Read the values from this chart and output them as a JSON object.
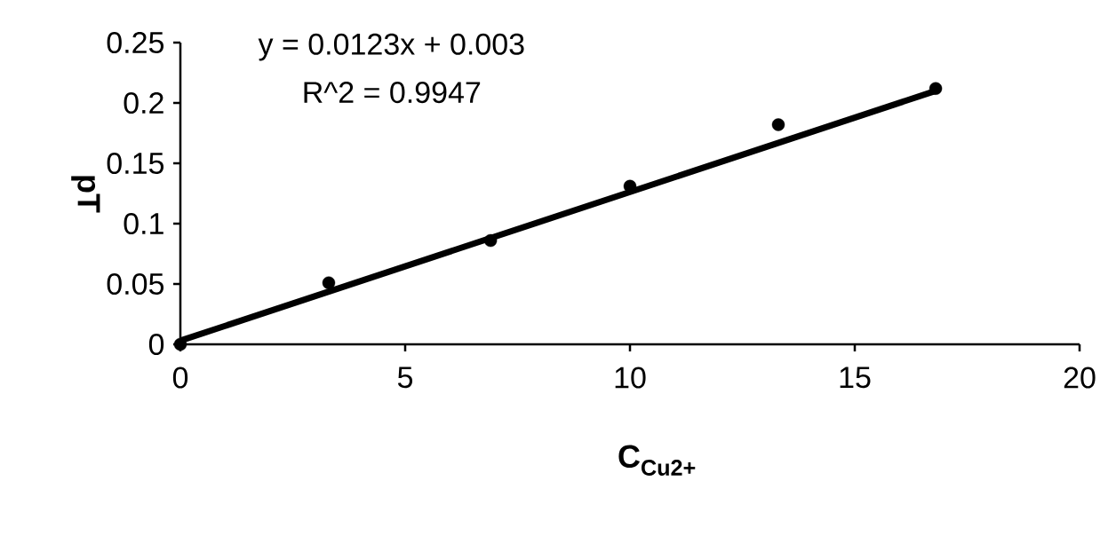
{
  "chart_data": {
    "type": "scatter",
    "xlabel": "C$_{Cu2+}$",
    "ylabel": "pT",
    "annotations": [
      "y = 0.0123x + 0.003",
      "R^2 = 0.9947"
    ],
    "series": [
      {
        "color": "#000000",
        "x": [
          0,
          3.3,
          6.9,
          10,
          13.3,
          16.8
        ],
        "values": [
          0,
          0.051,
          0.086,
          0.131,
          0.182,
          0.212
        ]
      },
      {
        "type": "line",
        "color": "#000000",
        "marker": "none",
        "x": [
          0,
          16.8
        ],
        "values": [
          0.003,
          0.21
        ]
      }
    ],
    "marker": "circle",
    "grid": false,
    "xlim": [
      0,
      20
    ],
    "ylim": [
      0,
      0.25
    ],
    "xticks": [
      0,
      5,
      10,
      15,
      20
    ],
    "yticks": [
      0,
      0.05,
      0.1,
      0.15,
      0.2,
      0.25
    ]
  }
}
